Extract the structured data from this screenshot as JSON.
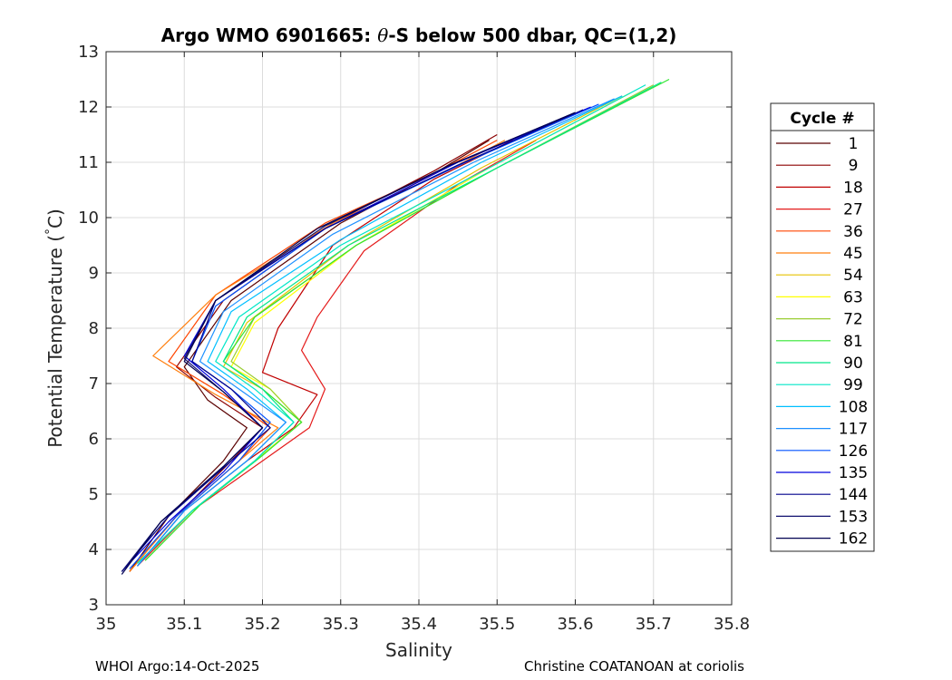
{
  "chart_data": {
    "type": "line",
    "title_prefix": "Argo WMO 6901665: ",
    "title_symbol": "θ",
    "title_suffix": "-S below 500 dbar,  QC=(1,2)",
    "xlabel": "Salinity",
    "ylabel_main": "Potential Temperature (",
    "ylabel_deg": "°",
    "ylabel_end": "C)",
    "xlim": [
      35.0,
      35.8
    ],
    "ylim": [
      3,
      13
    ],
    "xticks": [
      35.0,
      35.1,
      35.2,
      35.3,
      35.4,
      35.5,
      35.6,
      35.7,
      35.8
    ],
    "xtick_labels": [
      "35",
      "35.1",
      "35.2",
      "35.3",
      "35.4",
      "35.5",
      "35.6",
      "35.7",
      "35.8"
    ],
    "yticks": [
      3,
      4,
      5,
      6,
      7,
      8,
      9,
      10,
      11,
      12,
      13
    ],
    "ytick_labels": [
      "3",
      "4",
      "5",
      "6",
      "7",
      "8",
      "9",
      "10",
      "11",
      "12",
      "13"
    ],
    "grid": true,
    "legend_position": "outside-right",
    "legend_title": "Cycle #",
    "series": [
      {
        "name": "1",
        "color": "#5a0000",
        "points": [
          [
            35.03,
            3.6
          ],
          [
            35.08,
            4.6
          ],
          [
            35.15,
            5.6
          ],
          [
            35.18,
            6.2
          ],
          [
            35.13,
            6.7
          ],
          [
            35.1,
            7.3
          ],
          [
            35.16,
            8.5
          ],
          [
            35.3,
            9.9
          ],
          [
            35.42,
            10.8
          ],
          [
            35.49,
            11.4
          ]
        ]
      },
      {
        "name": "9",
        "color": "#8b0000",
        "points": [
          [
            35.03,
            3.6
          ],
          [
            35.09,
            4.6
          ],
          [
            35.16,
            5.6
          ],
          [
            35.2,
            6.2
          ],
          [
            35.14,
            6.75
          ],
          [
            35.09,
            7.3
          ],
          [
            35.15,
            8.5
          ],
          [
            35.29,
            9.9
          ],
          [
            35.42,
            10.85
          ],
          [
            35.5,
            11.5
          ]
        ]
      },
      {
        "name": "18",
        "color": "#c00000",
        "points": [
          [
            35.04,
            3.7
          ],
          [
            35.1,
            4.7
          ],
          [
            35.18,
            5.6
          ],
          [
            35.24,
            6.2
          ],
          [
            35.27,
            6.8
          ],
          [
            35.2,
            7.2
          ],
          [
            35.22,
            8.0
          ],
          [
            35.29,
            9.5
          ],
          [
            35.42,
            10.7
          ],
          [
            35.52,
            11.4
          ]
        ]
      },
      {
        "name": "27",
        "color": "#e41a1a",
        "points": [
          [
            35.04,
            3.7
          ],
          [
            35.11,
            4.7
          ],
          [
            35.2,
            5.6
          ],
          [
            35.26,
            6.2
          ],
          [
            35.28,
            6.9
          ],
          [
            35.25,
            7.6
          ],
          [
            35.27,
            8.2
          ],
          [
            35.33,
            9.4
          ],
          [
            35.45,
            10.6
          ],
          [
            35.55,
            11.4
          ]
        ]
      },
      {
        "name": "36",
        "color": "#ff4500",
        "points": [
          [
            35.03,
            3.6
          ],
          [
            35.09,
            4.6
          ],
          [
            35.17,
            5.6
          ],
          [
            35.21,
            6.2
          ],
          [
            35.15,
            6.8
          ],
          [
            35.08,
            7.4
          ],
          [
            35.14,
            8.6
          ],
          [
            35.28,
            9.9
          ],
          [
            35.42,
            10.8
          ],
          [
            35.5,
            11.4
          ]
        ]
      },
      {
        "name": "45",
        "color": "#ff7f0e",
        "points": [
          [
            35.03,
            3.6
          ],
          [
            35.09,
            4.6
          ],
          [
            35.17,
            5.6
          ],
          [
            35.22,
            6.2
          ],
          [
            35.14,
            6.8
          ],
          [
            35.06,
            7.5
          ],
          [
            35.14,
            8.6
          ],
          [
            35.29,
            9.9
          ],
          [
            35.43,
            10.8
          ],
          [
            35.51,
            11.4
          ]
        ]
      },
      {
        "name": "54",
        "color": "#e6c200",
        "points": [
          [
            35.04,
            3.75
          ],
          [
            35.11,
            4.7
          ],
          [
            35.19,
            5.6
          ],
          [
            35.25,
            6.3
          ],
          [
            35.2,
            6.9
          ],
          [
            35.15,
            7.3
          ],
          [
            35.18,
            8.1
          ],
          [
            35.31,
            9.5
          ],
          [
            35.48,
            10.9
          ],
          [
            35.66,
            12.2
          ]
        ]
      },
      {
        "name": "63",
        "color": "#ffff00",
        "points": [
          [
            35.04,
            3.75
          ],
          [
            35.11,
            4.7
          ],
          [
            35.19,
            5.6
          ],
          [
            35.25,
            6.3
          ],
          [
            35.21,
            6.9
          ],
          [
            35.16,
            7.3
          ],
          [
            35.19,
            8.1
          ],
          [
            35.32,
            9.5
          ],
          [
            35.49,
            10.9
          ],
          [
            35.67,
            12.25
          ]
        ]
      },
      {
        "name": "72",
        "color": "#9acd32",
        "points": [
          [
            35.05,
            3.8
          ],
          [
            35.12,
            4.8
          ],
          [
            35.2,
            5.7
          ],
          [
            35.25,
            6.3
          ],
          [
            35.21,
            6.9
          ],
          [
            35.16,
            7.4
          ],
          [
            35.19,
            8.2
          ],
          [
            35.32,
            9.5
          ],
          [
            35.5,
            10.9
          ],
          [
            35.7,
            12.4
          ]
        ]
      },
      {
        "name": "81",
        "color": "#32e632",
        "points": [
          [
            35.05,
            3.8
          ],
          [
            35.12,
            4.8
          ],
          [
            35.2,
            5.7
          ],
          [
            35.25,
            6.3
          ],
          [
            35.2,
            6.9
          ],
          [
            35.15,
            7.4
          ],
          [
            35.19,
            8.2
          ],
          [
            35.32,
            9.5
          ],
          [
            35.5,
            10.9
          ],
          [
            35.72,
            12.5
          ]
        ]
      },
      {
        "name": "90",
        "color": "#00e68a",
        "points": [
          [
            35.04,
            3.75
          ],
          [
            35.11,
            4.7
          ],
          [
            35.19,
            5.6
          ],
          [
            35.24,
            6.3
          ],
          [
            35.2,
            6.9
          ],
          [
            35.15,
            7.4
          ],
          [
            35.18,
            8.2
          ],
          [
            35.31,
            9.5
          ],
          [
            35.5,
            10.9
          ],
          [
            35.71,
            12.45
          ]
        ]
      },
      {
        "name": "99",
        "color": "#00e6c8",
        "points": [
          [
            35.04,
            3.75
          ],
          [
            35.11,
            4.7
          ],
          [
            35.19,
            5.6
          ],
          [
            35.24,
            6.3
          ],
          [
            35.19,
            6.9
          ],
          [
            35.14,
            7.4
          ],
          [
            35.17,
            8.2
          ],
          [
            35.3,
            9.5
          ],
          [
            35.49,
            10.9
          ],
          [
            35.69,
            12.4
          ]
        ]
      },
      {
        "name": "108",
        "color": "#00bfff",
        "points": [
          [
            35.04,
            3.7
          ],
          [
            35.1,
            4.7
          ],
          [
            35.18,
            5.6
          ],
          [
            35.23,
            6.3
          ],
          [
            35.18,
            6.9
          ],
          [
            35.13,
            7.4
          ],
          [
            35.16,
            8.3
          ],
          [
            35.3,
            9.6
          ],
          [
            35.48,
            11.0
          ],
          [
            35.66,
            12.2
          ]
        ]
      },
      {
        "name": "117",
        "color": "#1e90ff",
        "points": [
          [
            35.04,
            3.7
          ],
          [
            35.1,
            4.7
          ],
          [
            35.18,
            5.6
          ],
          [
            35.23,
            6.3
          ],
          [
            35.17,
            6.9
          ],
          [
            35.12,
            7.4
          ],
          [
            35.15,
            8.3
          ],
          [
            35.29,
            9.7
          ],
          [
            35.47,
            11.0
          ],
          [
            35.65,
            12.15
          ]
        ]
      },
      {
        "name": "126",
        "color": "#0050ff",
        "points": [
          [
            35.03,
            3.65
          ],
          [
            35.09,
            4.6
          ],
          [
            35.17,
            5.6
          ],
          [
            35.21,
            6.3
          ],
          [
            35.16,
            6.9
          ],
          [
            35.11,
            7.4
          ],
          [
            35.14,
            8.4
          ],
          [
            35.28,
            9.8
          ],
          [
            35.46,
            11.0
          ],
          [
            35.63,
            12.05
          ]
        ]
      },
      {
        "name": "135",
        "color": "#0000dd",
        "points": [
          [
            35.02,
            3.6
          ],
          [
            35.08,
            4.5
          ],
          [
            35.15,
            5.4
          ],
          [
            35.2,
            6.2
          ],
          [
            35.15,
            6.9
          ],
          [
            35.1,
            7.5
          ],
          [
            35.14,
            8.5
          ],
          [
            35.28,
            9.8
          ],
          [
            35.45,
            11.0
          ],
          [
            35.62,
            12.0
          ]
        ]
      },
      {
        "name": "144",
        "color": "#00008b",
        "points": [
          [
            35.02,
            3.6
          ],
          [
            35.08,
            4.6
          ],
          [
            35.16,
            5.6
          ],
          [
            35.21,
            6.2
          ],
          [
            35.16,
            6.9
          ],
          [
            35.11,
            7.4
          ],
          [
            35.14,
            8.5
          ],
          [
            35.28,
            9.8
          ],
          [
            35.45,
            10.95
          ],
          [
            35.61,
            11.95
          ]
        ]
      },
      {
        "name": "153",
        "color": "#101070",
        "points": [
          [
            35.02,
            3.6
          ],
          [
            35.07,
            4.5
          ],
          [
            35.15,
            5.5
          ],
          [
            35.2,
            6.2
          ],
          [
            35.15,
            6.85
          ],
          [
            35.1,
            7.45
          ],
          [
            35.14,
            8.5
          ],
          [
            35.28,
            9.85
          ],
          [
            35.44,
            10.95
          ],
          [
            35.6,
            11.9
          ]
        ]
      },
      {
        "name": "162",
        "color": "#000050",
        "points": [
          [
            35.02,
            3.55
          ],
          [
            35.07,
            4.5
          ],
          [
            35.15,
            5.5
          ],
          [
            35.2,
            6.2
          ],
          [
            35.15,
            6.85
          ],
          [
            35.1,
            7.4
          ],
          [
            35.14,
            8.5
          ],
          [
            35.27,
            9.8
          ],
          [
            35.44,
            10.95
          ],
          [
            35.6,
            11.9
          ]
        ]
      }
    ]
  },
  "footer": {
    "left": "WHOI Argo:14-Oct-2025",
    "right": "Christine COATANOAN at coriolis"
  }
}
